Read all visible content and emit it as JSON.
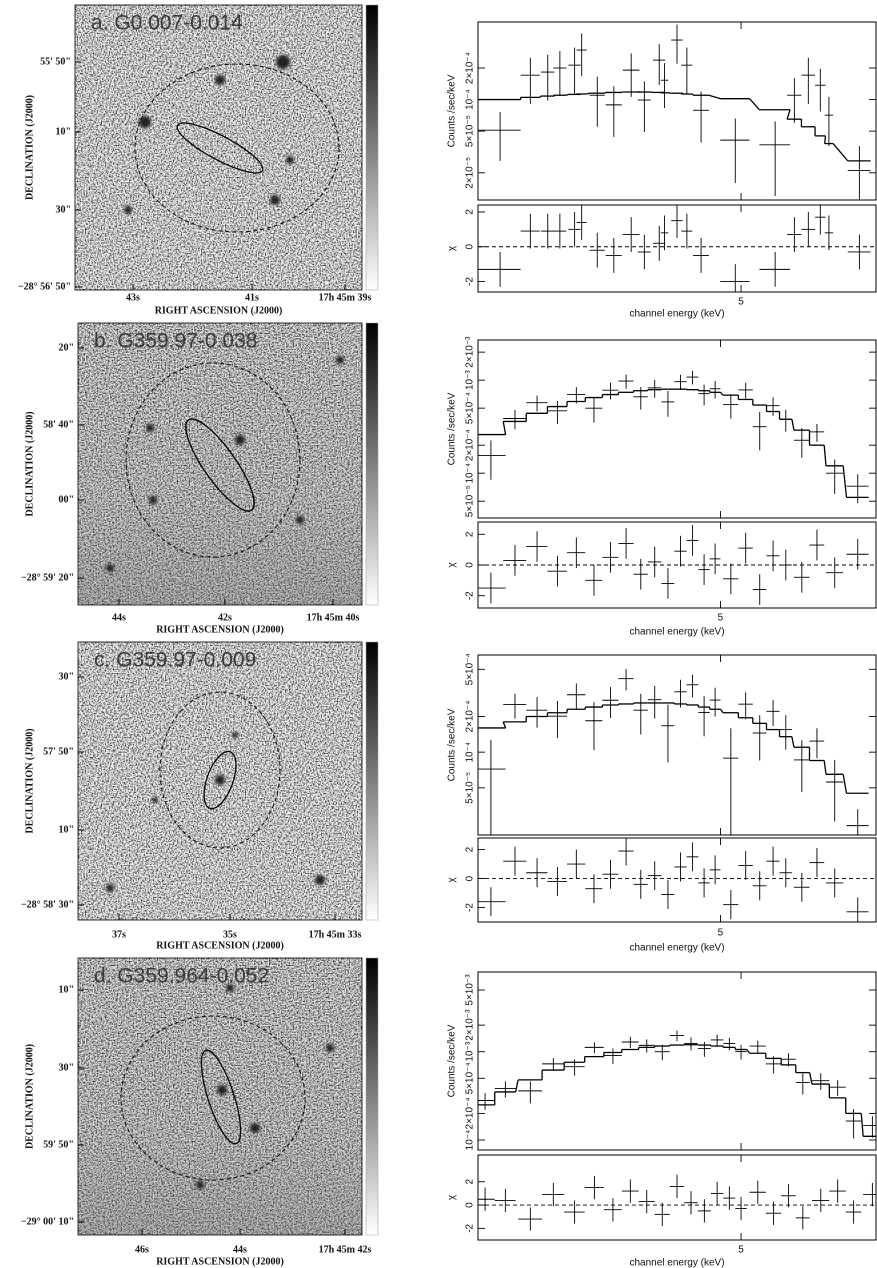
{
  "images": [
    {
      "title": "a. G0.007-0.014",
      "dec_label": "DECLINATION (J2000)",
      "ra_label": "RIGHT ASCENSION (J2000)",
      "dec_ticks": [
        "55' 50\"",
        "10\"",
        "30\"",
        "−28° 56' 50\""
      ],
      "ra_ticks": [
        "43s",
        "41s",
        "17h 45m 39s"
      ]
    },
    {
      "title": "b. G359.97-0.038",
      "dec_label": "DECLINATION (J2000)",
      "ra_label": "RIGHT ASCENSION (J2000)",
      "dec_ticks": [
        "20\"",
        "58' 40\"",
        "00\"",
        "−28° 59' 20\""
      ],
      "ra_ticks": [
        "44s",
        "42s",
        "17h 45m 40s"
      ]
    },
    {
      "title": "c. G359.97-0.009",
      "dec_label": "DECLINATION (J2000)",
      "ra_label": "RIGHT ASCENSION (J2000)",
      "dec_ticks": [
        "30\"",
        "57' 50\"",
        "10\"",
        "−28° 58' 30\""
      ],
      "ra_ticks": [
        "37s",
        "35s",
        "17h 45m 33s"
      ]
    },
    {
      "title": "d. G359.964-0.052",
      "dec_label": "DECLINATION (J2000)",
      "ra_label": "RIGHT ASCENSION (J2000)",
      "dec_ticks": [
        "10\"",
        "30\"",
        "59' 50\"",
        "−29° 00' 10\""
      ],
      "ra_ticks": [
        "46s",
        "44s",
        "17h 45m 42s"
      ]
    }
  ],
  "chart_data": [
    {
      "type": "spectrum",
      "ylabel": "Counts /sec/keV",
      "residual_label": "χ",
      "xlabel": "channel energy (keV)",
      "log_x": true,
      "log_y": true,
      "xlim": [
        2,
        8
      ],
      "xticks": [
        5
      ],
      "ylim": [
        1.1e-05,
        0.00055
      ],
      "yticks": [
        {
          "value": 2e-05,
          "label": "2×10⁻⁵"
        },
        {
          "value": 5e-05,
          "label": "5×10⁻⁵"
        },
        {
          "value": 0.0001,
          "label": "10⁻⁴"
        },
        {
          "value": 0.0002,
          "label": "2×10⁻⁴"
        }
      ],
      "residual_ylim": [
        -2.6,
        2.4
      ],
      "residual_yticks": [
        -2,
        0,
        2
      ],
      "x": [
        2.16,
        2.4,
        2.55,
        2.66,
        2.8,
        2.87,
        3.03,
        3.21,
        3.41,
        3.57,
        3.76,
        3.83,
        4.0,
        4.14,
        4.35,
        4.9,
        5.63,
        6.02,
        6.32,
        6.59,
        6.79,
        7.55
      ],
      "x_err": [
        0.16,
        0.08,
        0.06,
        0.06,
        0.06,
        0.05,
        0.08,
        0.09,
        0.1,
        0.08,
        0.08,
        0.05,
        0.08,
        0.08,
        0.12,
        0.25,
        0.3,
        0.15,
        0.15,
        0.12,
        0.1,
        0.3
      ],
      "values": [
        5.1e-05,
        0.000171,
        0.000183,
        0.0002,
        0.000213,
        0.000297,
        0.00011,
        8.9e-05,
        0.000191,
        9.9e-05,
        0.000238,
        0.000153,
        0.00037,
        0.000213,
        7.9e-05,
        4.1e-05,
        3.7e-05,
        0.00011,
        0.000171,
        0.000137,
        7.1e-05,
        2.1e-05
      ],
      "errors": [
        2.5e-05,
        8e-05,
        8.5e-05,
        9e-05,
        0.0001,
        0.00013,
        5.5e-05,
        4.5e-05,
        8.5e-05,
        5e-05,
        0.0001,
        7e-05,
        0.00015,
        0.0001,
        4e-05,
        2.5e-05,
        2.5e-05,
        5e-05,
        8e-05,
        6e-05,
        3.5e-05,
        1.5e-05
      ],
      "model": [
        0.0001,
        0.000105,
        0.000108,
        0.00011,
        0.000112,
        0.000113,
        0.000115,
        0.000117,
        0.000118,
        0.000118,
        0.000117,
        0.000116,
        0.000115,
        0.000113,
        0.00011,
        0.000102,
        8e-05,
        6.5e-05,
        5.5e-05,
        4.5e-05,
        3.8e-05,
        2.6e-05
      ],
      "residuals": [
        -1.3,
        0.9,
        0.9,
        0.9,
        1.0,
        1.4,
        -0.2,
        -0.5,
        0.7,
        -0.3,
        0.2,
        0.8,
        1.5,
        0.9,
        -0.5,
        -2.0,
        -1.3,
        0.7,
        1.0,
        1.7,
        0.8,
        -0.3
      ],
      "residual_errors": [
        1,
        1,
        1,
        1,
        1,
        1,
        1,
        1,
        1,
        1,
        1,
        1,
        1,
        1,
        1,
        1,
        1,
        1,
        1,
        1,
        1,
        1
      ]
    },
    {
      "type": "spectrum",
      "ylabel": "Counts /sec/keV",
      "residual_label": "χ",
      "xlabel": "channel energy (keV)",
      "log_x": true,
      "log_y": true,
      "xlim": [
        2,
        9
      ],
      "xticks": [
        5
      ],
      "ylim": [
        3.3e-05,
        0.0027
      ],
      "yticks": [
        {
          "value": 5e-05,
          "label": "5×10⁻⁵"
        },
        {
          "value": 0.0001,
          "label": "10⁻⁴"
        },
        {
          "value": 0.0002,
          "label": "2×10⁻⁴"
        },
        {
          "value": 0.0005,
          "label": "5×10⁻⁴"
        },
        {
          "value": 0.001,
          "label": "10⁻³"
        },
        {
          "value": 0.002,
          "label": "2×10⁻³"
        }
      ],
      "residual_ylim": [
        -2.8,
        2.8
      ],
      "residual_yticks": [
        -2,
        0,
        2
      ],
      "x": [
        2.1,
        2.3,
        2.5,
        2.7,
        2.9,
        3.1,
        3.3,
        3.5,
        3.7,
        3.9,
        4.1,
        4.3,
        4.5,
        4.7,
        4.9,
        5.2,
        5.5,
        5.8,
        6.1,
        6.4,
        6.8,
        7.2,
        7.7,
        8.4
      ],
      "x_err": [
        0.12,
        0.1,
        0.1,
        0.1,
        0.1,
        0.1,
        0.1,
        0.1,
        0.1,
        0.1,
        0.1,
        0.1,
        0.1,
        0.1,
        0.1,
        0.15,
        0.15,
        0.15,
        0.15,
        0.15,
        0.2,
        0.2,
        0.25,
        0.35
      ],
      "values": [
        0.000155,
        0.000387,
        0.000572,
        0.000468,
        0.000702,
        0.0005,
        0.00078,
        0.000978,
        0.000662,
        0.000826,
        0.000584,
        0.000962,
        0.001078,
        0.000716,
        0.000808,
        0.000546,
        0.000785,
        0.000316,
        0.000532,
        0.00038,
        0.000226,
        0.000278,
        0.0001,
        7.25e-05
      ],
      "errors": [
        7e-05,
        9e-05,
        0.00011,
        0.00013,
        0.00014,
        0.00015,
        0.00016,
        0.00017,
        0.00018,
        0.00018,
        0.00018,
        0.00018,
        0.00018,
        0.00018,
        0.00017,
        0.00016,
        0.00015,
        0.00014,
        0.00012,
        0.0001,
        8e-05,
        6e-05,
        4e-05,
        2.5e-05
      ],
      "model": [
        0.00026,
        0.00036,
        0.00044,
        0.00052,
        0.00059,
        0.00065,
        0.0007,
        0.00074,
        0.00077,
        0.00079,
        0.0008,
        0.0008,
        0.00079,
        0.00077,
        0.00074,
        0.00069,
        0.00062,
        0.00054,
        0.00046,
        0.00038,
        0.00029,
        0.0002,
        0.00012,
        5.5e-05
      ],
      "residuals": [
        -1.5,
        0.3,
        1.2,
        -0.4,
        0.8,
        -1.0,
        0.5,
        1.4,
        -0.6,
        0.2,
        -1.2,
        0.9,
        1.6,
        -0.3,
        0.4,
        -0.9,
        1.1,
        -1.6,
        0.6,
        0.0,
        -0.8,
        1.3,
        -0.5,
        0.7
      ],
      "residual_errors": [
        1,
        1,
        1,
        1,
        1,
        1,
        1,
        1,
        1,
        1,
        1,
        1,
        1,
        1,
        1,
        1,
        1,
        1,
        1,
        1,
        1,
        1,
        1,
        1
      ]
    },
    {
      "type": "spectrum",
      "ylabel": "Counts /sec/keV",
      "residual_label": "χ",
      "xlabel": "channel energy (keV)",
      "log_x": true,
      "log_y": true,
      "xlim": [
        2,
        9
      ],
      "xticks": [
        5
      ],
      "ylim": [
        2e-05,
        0.00066
      ],
      "yticks": [
        {
          "value": 5e-05,
          "label": "5×10⁻⁵"
        },
        {
          "value": 0.0001,
          "label": "10⁻⁴"
        },
        {
          "value": 0.0002,
          "label": "2×10⁻⁴"
        },
        {
          "value": 0.0005,
          "label": "5×10⁻⁴"
        }
      ],
      "residual_ylim": [
        -3,
        2.8
      ],
      "residual_yticks": [
        -2,
        0,
        2
      ],
      "x": [
        2.1,
        2.3,
        2.5,
        2.7,
        2.9,
        3.1,
        3.3,
        3.5,
        3.7,
        3.9,
        4.1,
        4.3,
        4.5,
        4.7,
        4.9,
        5.2,
        5.5,
        5.8,
        6.1,
        6.4,
        6.8,
        7.2,
        7.7,
        8.4
      ],
      "x_err": [
        0.12,
        0.1,
        0.1,
        0.1,
        0.1,
        0.1,
        0.1,
        0.1,
        0.1,
        0.1,
        0.1,
        0.1,
        0.1,
        0.1,
        0.1,
        0.15,
        0.15,
        0.15,
        0.15,
        0.15,
        0.2,
        0.2,
        0.25,
        0.35
      ],
      "values": [
        7.2e-05,
        0.000252,
        0.000226,
        0.000201,
        0.000305,
        0.000184,
        0.000274,
        0.000417,
        0.000226,
        0.000277,
        0.000167,
        0.000323,
        0.00037,
        0.000216,
        0.000275,
        8.9e-05,
        0.000254,
        0.000145,
        0.000221,
        0.000155,
        8.6e-05,
        0.000124,
        5.6e-05,
        2.4e-05
      ],
      "errors": [
        5.5e-05,
        6e-05,
        6.5e-05,
        7e-05,
        7.5e-05,
        8e-05,
        8e-05,
        8.5e-05,
        8.5e-05,
        8.5e-05,
        8.5e-05,
        8.5e-05,
        8e-05,
        8e-05,
        7.5e-05,
        7e-05,
        6.5e-05,
        6e-05,
        5.5e-05,
        5e-05,
        4e-05,
        3.5e-05,
        3e-05,
        9e-06
      ],
      "model": [
        0.00016,
        0.00018,
        0.0002,
        0.000215,
        0.00023,
        0.00024,
        0.00025,
        0.000255,
        0.00026,
        0.00026,
        0.00026,
        0.000255,
        0.00025,
        0.00024,
        0.00023,
        0.000215,
        0.000195,
        0.000175,
        0.000155,
        0.000135,
        0.00011,
        8.5e-05,
        6.5e-05,
        4.5e-05
      ],
      "residuals": [
        -1.6,
        1.2,
        0.4,
        -0.2,
        1.0,
        -0.7,
        0.3,
        1.9,
        -0.4,
        0.2,
        -1.1,
        0.8,
        1.5,
        -0.3,
        0.6,
        -1.8,
        0.9,
        -0.5,
        1.2,
        0.4,
        -0.6,
        1.1,
        -0.3,
        -2.3
      ],
      "residual_errors": [
        1,
        1,
        1,
        1,
        1,
        1,
        1,
        1,
        1,
        1,
        1,
        1,
        1,
        1,
        1,
        1,
        1,
        1,
        1,
        1,
        1,
        1,
        1,
        1
      ]
    },
    {
      "type": "spectrum",
      "ylabel": "Counts /sec/keV",
      "residual_label": "χ",
      "xlabel": "channel energy (keV)",
      "log_x": true,
      "log_y": true,
      "xlim": [
        2,
        8
      ],
      "xticks": [
        5
      ],
      "ylim": [
        7.7e-05,
        0.008
      ],
      "yticks": [
        {
          "value": 0.0001,
          "label": "10⁻⁴"
        },
        {
          "value": 0.0002,
          "label": "2×10⁻⁴"
        },
        {
          "value": 0.0005,
          "label": "5×10⁻⁴"
        },
        {
          "value": 0.001,
          "label": "10⁻³"
        },
        {
          "value": 0.002,
          "label": "2×10⁻³"
        },
        {
          "value": 0.005,
          "label": "5×10⁻³"
        }
      ],
      "residual_ylim": [
        -3,
        4.3
      ],
      "residual_yticks": [
        -2,
        0,
        2
      ],
      "x": [
        2.05,
        2.2,
        2.4,
        2.6,
        2.8,
        3.0,
        3.2,
        3.4,
        3.6,
        3.8,
        4.0,
        4.2,
        4.4,
        4.6,
        4.8,
        5.0,
        5.3,
        5.6,
        5.9,
        6.2,
        6.6,
        7.0,
        7.4,
        7.9
      ],
      "x_err": [
        0.07,
        0.08,
        0.1,
        0.1,
        0.1,
        0.1,
        0.1,
        0.1,
        0.1,
        0.1,
        0.1,
        0.1,
        0.1,
        0.1,
        0.1,
        0.1,
        0.15,
        0.15,
        0.15,
        0.15,
        0.2,
        0.2,
        0.2,
        0.25
      ],
      "values": [
        0.00028,
        0.000382,
        0.00036,
        0.000728,
        0.000676,
        0.00112,
        0.000908,
        0.001288,
        0.00118,
        0.001,
        0.001526,
        0.001242,
        0.001085,
        0.00136,
        0.00124,
        0.001003,
        0.001158,
        0.000728,
        0.000822,
        0.000448,
        0.00047,
        0.000396,
        0.000164,
        0.000146
      ],
      "errors": [
        6e-05,
        8e-05,
        0.0001,
        0.00012,
        0.00014,
        0.00016,
        0.00018,
        0.00019,
        0.0002,
        0.0002,
        0.00021,
        0.00021,
        0.00021,
        0.0002,
        0.0002,
        0.00019,
        0.00018,
        0.00016,
        0.00014,
        0.00012,
        0.0001,
        8e-05,
        6e-05,
        4e-05
      ],
      "model": [
        0.00025,
        0.00035,
        0.00048,
        0.00062,
        0.00076,
        0.00088,
        0.00098,
        0.00106,
        0.00112,
        0.00116,
        0.00119,
        0.0012,
        0.00119,
        0.00116,
        0.00112,
        0.00106,
        0.00096,
        0.00084,
        0.00071,
        0.00058,
        0.00043,
        0.0003,
        0.0002,
        0.00011
      ],
      "residuals": [
        0.5,
        0.4,
        -1.2,
        0.9,
        -0.6,
        1.5,
        -0.4,
        1.2,
        0.3,
        -0.8,
        1.6,
        0.2,
        -0.5,
        1.0,
        0.6,
        -0.3,
        1.1,
        -0.7,
        0.8,
        -1.1,
        0.4,
        1.2,
        -0.6,
        0.9
      ],
      "residual_errors": [
        1,
        1,
        1,
        1,
        1,
        1,
        1,
        1,
        1,
        1,
        1,
        1,
        1,
        1,
        1,
        1,
        1,
        1,
        1,
        1,
        1,
        1,
        1,
        1
      ]
    }
  ]
}
